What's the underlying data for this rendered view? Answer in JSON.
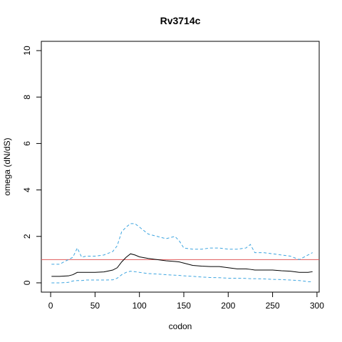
{
  "chart_data": {
    "type": "line",
    "title": "Rv3714c",
    "x_label": "codon",
    "y_label": "omega (dN/dS)",
    "x": [
      1,
      10,
      20,
      25,
      30,
      35,
      40,
      50,
      60,
      70,
      75,
      80,
      85,
      90,
      95,
      100,
      110,
      120,
      130,
      140,
      145,
      150,
      160,
      170,
      180,
      190,
      200,
      210,
      220,
      225,
      230,
      240,
      250,
      260,
      270,
      280,
      290,
      295
    ],
    "series": [
      {
        "color": "#000000",
        "dash": false,
        "values": [
          0.28,
          0.28,
          0.3,
          0.35,
          0.45,
          0.45,
          0.45,
          0.45,
          0.47,
          0.55,
          0.65,
          0.9,
          1.1,
          1.25,
          1.2,
          1.12,
          1.05,
          1.0,
          0.95,
          0.92,
          0.9,
          0.85,
          0.75,
          0.72,
          0.7,
          0.7,
          0.65,
          0.6,
          0.6,
          0.58,
          0.55,
          0.55,
          0.55,
          0.52,
          0.5,
          0.45,
          0.45,
          0.48
        ]
      },
      {
        "color": "#3da5e0",
        "dash": true,
        "values": [
          0.8,
          0.8,
          1.0,
          1.1,
          1.5,
          1.1,
          1.15,
          1.15,
          1.2,
          1.35,
          1.6,
          2.2,
          2.4,
          2.55,
          2.55,
          2.4,
          2.1,
          2.0,
          1.9,
          2.0,
          1.8,
          1.5,
          1.45,
          1.45,
          1.5,
          1.5,
          1.45,
          1.45,
          1.5,
          1.65,
          1.3,
          1.3,
          1.25,
          1.2,
          1.15,
          1.0,
          1.2,
          1.3
        ]
      },
      {
        "color": "#3da5e0",
        "dash": true,
        "values": [
          0,
          0,
          0.02,
          0.08,
          0.1,
          0.1,
          0.12,
          0.12,
          0.12,
          0.13,
          0.2,
          0.35,
          0.45,
          0.5,
          0.48,
          0.45,
          0.4,
          0.38,
          0.35,
          0.33,
          0.32,
          0.3,
          0.28,
          0.25,
          0.23,
          0.22,
          0.2,
          0.2,
          0.19,
          0.18,
          0.18,
          0.17,
          0.15,
          0.14,
          0.12,
          0.1,
          0.05,
          0.05
        ]
      }
    ],
    "reference_line": {
      "value": 1,
      "color": "#e05a5a"
    },
    "xlim": [
      -10.5,
      302.5
    ],
    "ylim": [
      -0.4,
      10.4
    ],
    "xticks": [
      0,
      50,
      100,
      150,
      200,
      250,
      300
    ],
    "yticks": [
      0,
      2,
      4,
      6,
      8,
      10
    ]
  }
}
